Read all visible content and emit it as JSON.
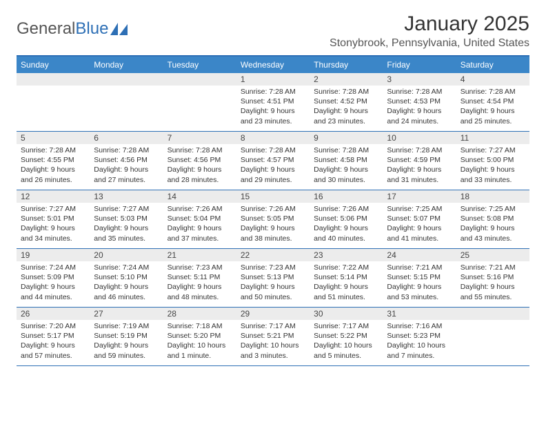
{
  "logo": {
    "text1": "General",
    "text2": "Blue"
  },
  "title": "January 2025",
  "location": "Stonybrook, Pennsylvania, United States",
  "colors": {
    "header_bg": "#3b86c8",
    "border": "#2d6fb5",
    "daynum_bg": "#ececec",
    "text": "#333333"
  },
  "day_names": [
    "Sunday",
    "Monday",
    "Tuesday",
    "Wednesday",
    "Thursday",
    "Friday",
    "Saturday"
  ],
  "weeks": [
    [
      null,
      null,
      null,
      {
        "n": "1",
        "sunrise": "7:28 AM",
        "sunset": "4:51 PM",
        "daylight": "9 hours and 23 minutes."
      },
      {
        "n": "2",
        "sunrise": "7:28 AM",
        "sunset": "4:52 PM",
        "daylight": "9 hours and 23 minutes."
      },
      {
        "n": "3",
        "sunrise": "7:28 AM",
        "sunset": "4:53 PM",
        "daylight": "9 hours and 24 minutes."
      },
      {
        "n": "4",
        "sunrise": "7:28 AM",
        "sunset": "4:54 PM",
        "daylight": "9 hours and 25 minutes."
      }
    ],
    [
      {
        "n": "5",
        "sunrise": "7:28 AM",
        "sunset": "4:55 PM",
        "daylight": "9 hours and 26 minutes."
      },
      {
        "n": "6",
        "sunrise": "7:28 AM",
        "sunset": "4:56 PM",
        "daylight": "9 hours and 27 minutes."
      },
      {
        "n": "7",
        "sunrise": "7:28 AM",
        "sunset": "4:56 PM",
        "daylight": "9 hours and 28 minutes."
      },
      {
        "n": "8",
        "sunrise": "7:28 AM",
        "sunset": "4:57 PM",
        "daylight": "9 hours and 29 minutes."
      },
      {
        "n": "9",
        "sunrise": "7:28 AM",
        "sunset": "4:58 PM",
        "daylight": "9 hours and 30 minutes."
      },
      {
        "n": "10",
        "sunrise": "7:28 AM",
        "sunset": "4:59 PM",
        "daylight": "9 hours and 31 minutes."
      },
      {
        "n": "11",
        "sunrise": "7:27 AM",
        "sunset": "5:00 PM",
        "daylight": "9 hours and 33 minutes."
      }
    ],
    [
      {
        "n": "12",
        "sunrise": "7:27 AM",
        "sunset": "5:01 PM",
        "daylight": "9 hours and 34 minutes."
      },
      {
        "n": "13",
        "sunrise": "7:27 AM",
        "sunset": "5:03 PM",
        "daylight": "9 hours and 35 minutes."
      },
      {
        "n": "14",
        "sunrise": "7:26 AM",
        "sunset": "5:04 PM",
        "daylight": "9 hours and 37 minutes."
      },
      {
        "n": "15",
        "sunrise": "7:26 AM",
        "sunset": "5:05 PM",
        "daylight": "9 hours and 38 minutes."
      },
      {
        "n": "16",
        "sunrise": "7:26 AM",
        "sunset": "5:06 PM",
        "daylight": "9 hours and 40 minutes."
      },
      {
        "n": "17",
        "sunrise": "7:25 AM",
        "sunset": "5:07 PM",
        "daylight": "9 hours and 41 minutes."
      },
      {
        "n": "18",
        "sunrise": "7:25 AM",
        "sunset": "5:08 PM",
        "daylight": "9 hours and 43 minutes."
      }
    ],
    [
      {
        "n": "19",
        "sunrise": "7:24 AM",
        "sunset": "5:09 PM",
        "daylight": "9 hours and 44 minutes."
      },
      {
        "n": "20",
        "sunrise": "7:24 AM",
        "sunset": "5:10 PM",
        "daylight": "9 hours and 46 minutes."
      },
      {
        "n": "21",
        "sunrise": "7:23 AM",
        "sunset": "5:11 PM",
        "daylight": "9 hours and 48 minutes."
      },
      {
        "n": "22",
        "sunrise": "7:23 AM",
        "sunset": "5:13 PM",
        "daylight": "9 hours and 50 minutes."
      },
      {
        "n": "23",
        "sunrise": "7:22 AM",
        "sunset": "5:14 PM",
        "daylight": "9 hours and 51 minutes."
      },
      {
        "n": "24",
        "sunrise": "7:21 AM",
        "sunset": "5:15 PM",
        "daylight": "9 hours and 53 minutes."
      },
      {
        "n": "25",
        "sunrise": "7:21 AM",
        "sunset": "5:16 PM",
        "daylight": "9 hours and 55 minutes."
      }
    ],
    [
      {
        "n": "26",
        "sunrise": "7:20 AM",
        "sunset": "5:17 PM",
        "daylight": "9 hours and 57 minutes."
      },
      {
        "n": "27",
        "sunrise": "7:19 AM",
        "sunset": "5:19 PM",
        "daylight": "9 hours and 59 minutes."
      },
      {
        "n": "28",
        "sunrise": "7:18 AM",
        "sunset": "5:20 PM",
        "daylight": "10 hours and 1 minute."
      },
      {
        "n": "29",
        "sunrise": "7:17 AM",
        "sunset": "5:21 PM",
        "daylight": "10 hours and 3 minutes."
      },
      {
        "n": "30",
        "sunrise": "7:17 AM",
        "sunset": "5:22 PM",
        "daylight": "10 hours and 5 minutes."
      },
      {
        "n": "31",
        "sunrise": "7:16 AM",
        "sunset": "5:23 PM",
        "daylight": "10 hours and 7 minutes."
      },
      null
    ]
  ],
  "labels": {
    "sunrise_prefix": "Sunrise: ",
    "sunset_prefix": "Sunset: ",
    "daylight_prefix": "Daylight: "
  }
}
